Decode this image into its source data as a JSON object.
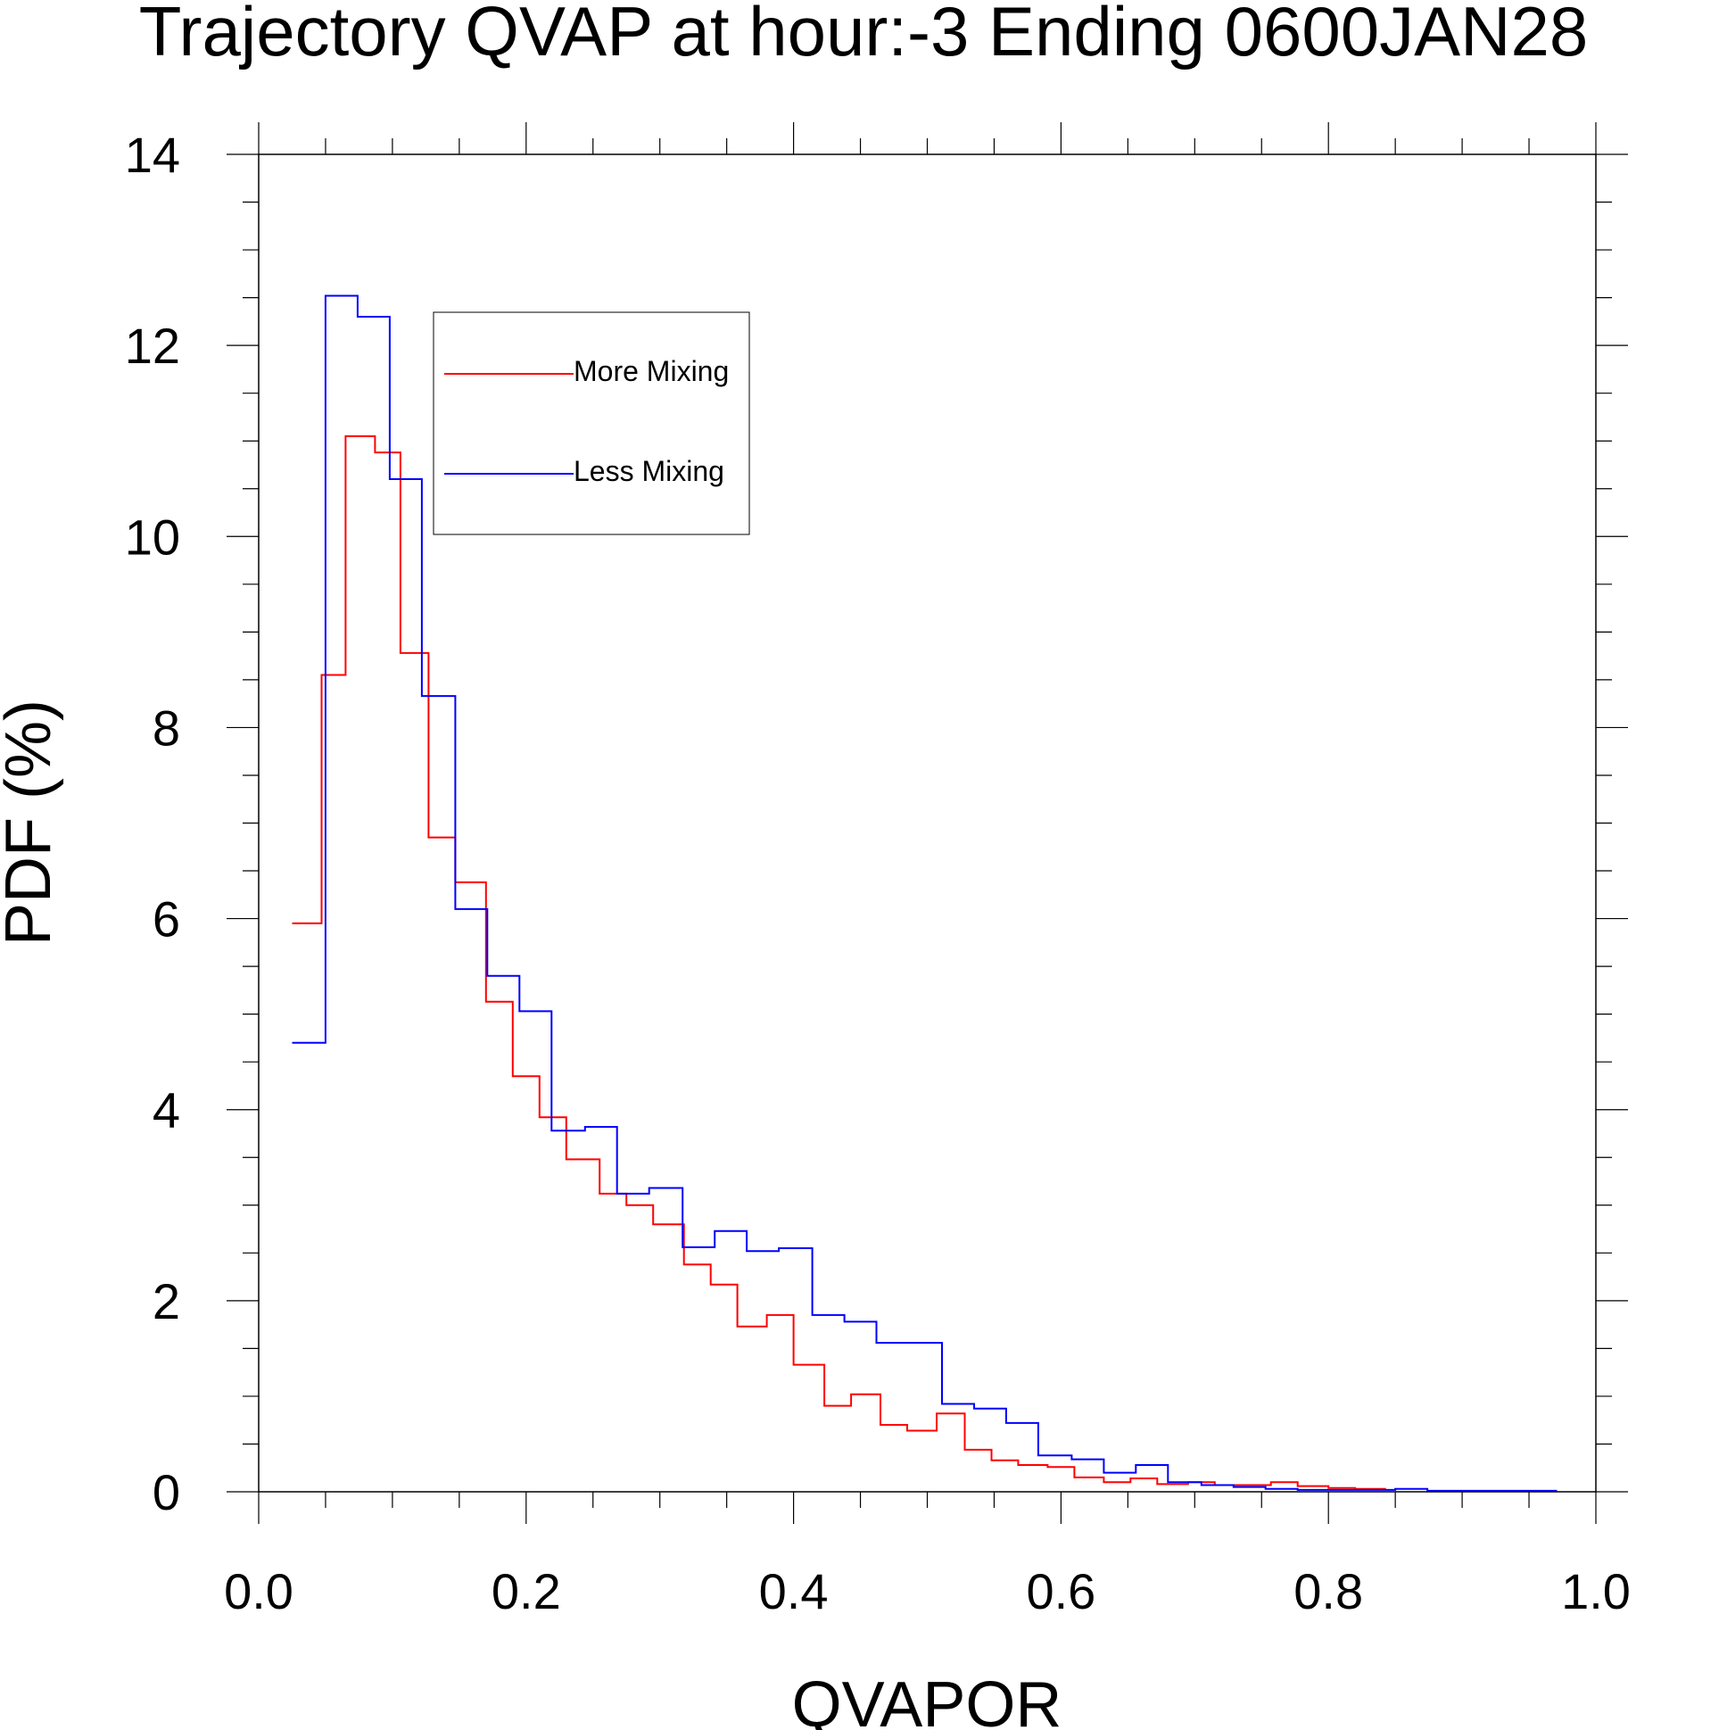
{
  "chart_data": {
    "type": "line",
    "style": "step",
    "title": "Trajectory QVAP at hour:-3 Ending 0600JAN28",
    "xlabel": "QVAPOR",
    "ylabel": "PDF (%)",
    "xlim": [
      0.0,
      1.0
    ],
    "ylim": [
      0,
      14
    ],
    "x_ticks": [
      "0.0",
      "0.2",
      "0.4",
      "0.6",
      "0.8",
      "1.0"
    ],
    "y_ticks": [
      "0",
      "2",
      "4",
      "6",
      "8",
      "10",
      "12",
      "14"
    ],
    "grid": false,
    "legend_position": "top-left",
    "series": [
      {
        "name": "More Mixing",
        "color": "#ff0000",
        "bins": [
          [
            0.025,
            0.047,
            5.95
          ],
          [
            0.047,
            0.065,
            8.55
          ],
          [
            0.065,
            0.087,
            11.05
          ],
          [
            0.087,
            0.106,
            10.88
          ],
          [
            0.106,
            0.127,
            8.78
          ],
          [
            0.127,
            0.147,
            6.85
          ],
          [
            0.147,
            0.17,
            6.38
          ],
          [
            0.17,
            0.19,
            5.13
          ],
          [
            0.19,
            0.21,
            4.35
          ],
          [
            0.21,
            0.23,
            3.92
          ],
          [
            0.23,
            0.255,
            3.48
          ],
          [
            0.255,
            0.275,
            3.12
          ],
          [
            0.275,
            0.295,
            3.0
          ],
          [
            0.295,
            0.318,
            2.8
          ],
          [
            0.318,
            0.338,
            2.38
          ],
          [
            0.338,
            0.358,
            2.17
          ],
          [
            0.358,
            0.38,
            1.73
          ],
          [
            0.38,
            0.4,
            1.85
          ],
          [
            0.4,
            0.423,
            1.33
          ],
          [
            0.423,
            0.443,
            0.9
          ],
          [
            0.443,
            0.465,
            1.02
          ],
          [
            0.465,
            0.485,
            0.7
          ],
          [
            0.485,
            0.507,
            0.64
          ],
          [
            0.507,
            0.528,
            0.82
          ],
          [
            0.528,
            0.548,
            0.44
          ],
          [
            0.548,
            0.568,
            0.33
          ],
          [
            0.568,
            0.59,
            0.28
          ],
          [
            0.59,
            0.61,
            0.26
          ],
          [
            0.61,
            0.632,
            0.15
          ],
          [
            0.632,
            0.652,
            0.1
          ],
          [
            0.652,
            0.672,
            0.14
          ],
          [
            0.672,
            0.695,
            0.08
          ],
          [
            0.695,
            0.715,
            0.1
          ],
          [
            0.715,
            0.737,
            0.07
          ],
          [
            0.737,
            0.757,
            0.07
          ],
          [
            0.757,
            0.777,
            0.1
          ],
          [
            0.777,
            0.8,
            0.06
          ],
          [
            0.8,
            0.82,
            0.04
          ],
          [
            0.82,
            0.843,
            0.03
          ]
        ]
      },
      {
        "name": "Less Mixing",
        "color": "#0000ff",
        "bins": [
          [
            0.025,
            0.05,
            4.7
          ],
          [
            0.05,
            0.074,
            12.52
          ],
          [
            0.074,
            0.098,
            12.3
          ],
          [
            0.098,
            0.122,
            10.6
          ],
          [
            0.122,
            0.147,
            8.33
          ],
          [
            0.147,
            0.171,
            6.1
          ],
          [
            0.171,
            0.195,
            5.4
          ],
          [
            0.195,
            0.219,
            5.03
          ],
          [
            0.219,
            0.244,
            3.78
          ],
          [
            0.244,
            0.268,
            3.82
          ],
          [
            0.268,
            0.292,
            3.12
          ],
          [
            0.292,
            0.317,
            3.18
          ],
          [
            0.317,
            0.341,
            2.56
          ],
          [
            0.341,
            0.365,
            2.73
          ],
          [
            0.365,
            0.389,
            2.52
          ],
          [
            0.389,
            0.414,
            2.55
          ],
          [
            0.414,
            0.438,
            1.85
          ],
          [
            0.438,
            0.462,
            1.78
          ],
          [
            0.462,
            0.511,
            1.56
          ],
          [
            0.511,
            0.535,
            0.92
          ],
          [
            0.535,
            0.559,
            0.87
          ],
          [
            0.559,
            0.583,
            0.72
          ],
          [
            0.583,
            0.608,
            0.38
          ],
          [
            0.608,
            0.632,
            0.34
          ],
          [
            0.632,
            0.656,
            0.2
          ],
          [
            0.656,
            0.68,
            0.28
          ],
          [
            0.68,
            0.705,
            0.1
          ],
          [
            0.705,
            0.729,
            0.07
          ],
          [
            0.729,
            0.753,
            0.05
          ],
          [
            0.753,
            0.777,
            0.03
          ],
          [
            0.777,
            0.826,
            0.02
          ],
          [
            0.826,
            0.85,
            0.02
          ],
          [
            0.85,
            0.874,
            0.03
          ],
          [
            0.874,
            0.899,
            0.01
          ],
          [
            0.899,
            0.971,
            0.01
          ]
        ]
      }
    ]
  }
}
